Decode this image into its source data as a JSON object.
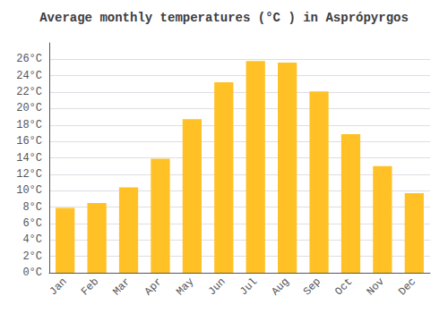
{
  "chart_data": {
    "type": "bar",
    "title": "Average monthly temperatures (°C ) in Asprópyrgos",
    "categories": [
      "Jan",
      "Feb",
      "Mar",
      "Apr",
      "May",
      "Jun",
      "Jul",
      "Aug",
      "Sep",
      "Oct",
      "Nov",
      "Dec"
    ],
    "values": [
      7.9,
      8.5,
      10.4,
      13.9,
      18.7,
      23.2,
      25.8,
      25.6,
      22.1,
      16.9,
      13.0,
      9.7
    ],
    "color": "#FFC125",
    "ylim": [
      0,
      28
    ],
    "yticks": [
      {
        "value": 0,
        "label": "0°C"
      },
      {
        "value": 2,
        "label": "2°C"
      },
      {
        "value": 4,
        "label": "4°C"
      },
      {
        "value": 6,
        "label": "6°C"
      },
      {
        "value": 8,
        "label": "8°C"
      },
      {
        "value": 10,
        "label": "10°C"
      },
      {
        "value": 12,
        "label": "12°C"
      },
      {
        "value": 14,
        "label": "14°C"
      },
      {
        "value": 16,
        "label": "16°C"
      },
      {
        "value": 18,
        "label": "18°C"
      },
      {
        "value": 20,
        "label": "20°C"
      },
      {
        "value": 22,
        "label": "22°C"
      },
      {
        "value": 24,
        "label": "24°C"
      },
      {
        "value": 26,
        "label": "26°C"
      }
    ],
    "grid": true
  }
}
